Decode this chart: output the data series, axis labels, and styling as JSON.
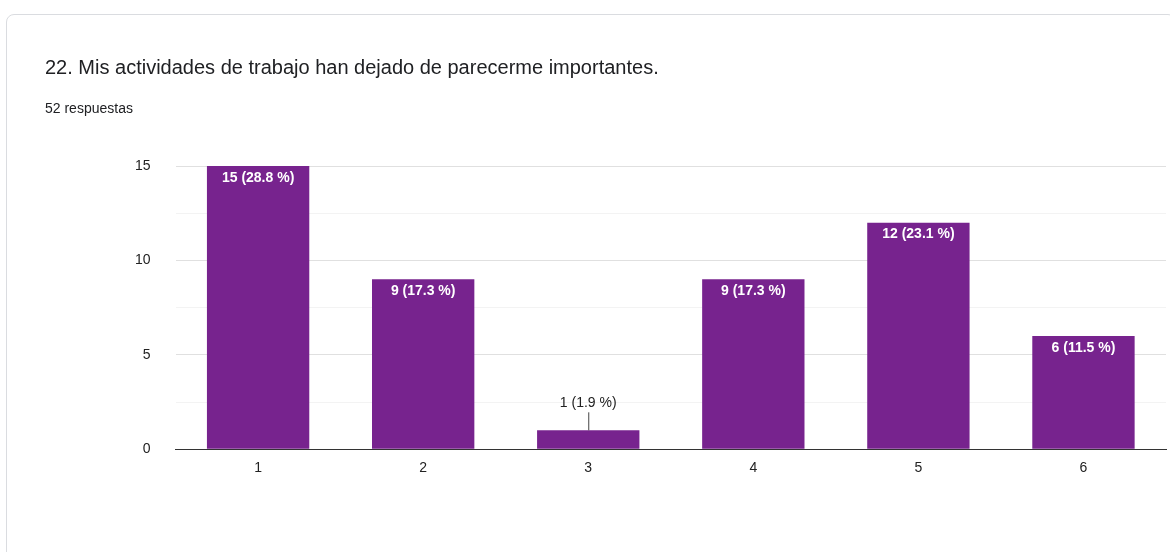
{
  "chart_data": {
    "type": "bar",
    "title": "22. Mis actividades de trabajo han dejado de parecerme importantes.",
    "subtitle": "52 respuestas",
    "categories": [
      "1",
      "2",
      "3",
      "4",
      "5",
      "6"
    ],
    "values": [
      15,
      9,
      1,
      9,
      12,
      6
    ],
    "value_labels": [
      "15 (28.8 %)",
      "9 (17.3 %)",
      "1 (1.9 %)",
      "9 (17.3 %)",
      "12 (23.1 %)",
      "6 (11.5 %)"
    ],
    "color": "#77238e",
    "ylim": [
      0,
      15
    ],
    "yticks": [
      0,
      {
        "value": 2.5,
        "label": null
      },
      5,
      {
        "value": 7.5,
        "label": null
      },
      10,
      {
        "value": 12.5,
        "label": null
      },
      15
    ],
    "grid": "y",
    "legend": false
  }
}
